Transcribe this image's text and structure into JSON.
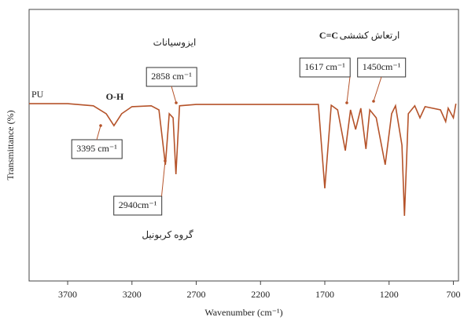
{
  "chart_data": {
    "type": "line",
    "xlabel": "Wavenumber (cm⁻¹)",
    "ylabel": "Transmittance (%)",
    "x": [
      4000,
      3700,
      3500,
      3400,
      3340,
      3280,
      3200,
      3050,
      2990,
      2940,
      2910,
      2880,
      2858,
      2830,
      2700,
      1750,
      1700,
      1650,
      1600,
      1540,
      1500,
      1460,
      1420,
      1380,
      1350,
      1300,
      1230,
      1180,
      1150,
      1100,
      1080,
      1050,
      1000,
      960,
      920,
      800,
      760,
      740,
      700,
      680
    ],
    "series": [
      {
        "name": "PU",
        "color": "#b5532a",
        "values": [
          65.3,
          65.3,
          64.5,
          61.6,
          57.2,
          61.6,
          64.2,
          64.5,
          63.0,
          42.8,
          61.6,
          60.1,
          39.3,
          64.5,
          65.0,
          65.0,
          34.1,
          64.7,
          63.0,
          48.0,
          63.0,
          55.8,
          63.6,
          48.6,
          63.0,
          60.1,
          42.8,
          61.6,
          64.5,
          50.0,
          24.0,
          61.6,
          64.5,
          60.1,
          64.2,
          63.0,
          58.7,
          63.6,
          60.1,
          65.3
        ]
      }
    ],
    "xlim": [
      4000,
      660
    ],
    "ylim": [
      0,
      100
    ],
    "xticks": [
      3700,
      3200,
      2700,
      2200,
      1700,
      1200,
      700
    ],
    "annotations": [
      "O-H",
      "3395 cm⁻¹",
      "2940cm⁻¹",
      "2858 cm⁻¹",
      "ایزوسیانات",
      "1617 cm⁻¹",
      "1450cm⁻¹",
      "C=C",
      "ارتعاش کششی",
      "گروه کربونیل"
    ]
  }
}
